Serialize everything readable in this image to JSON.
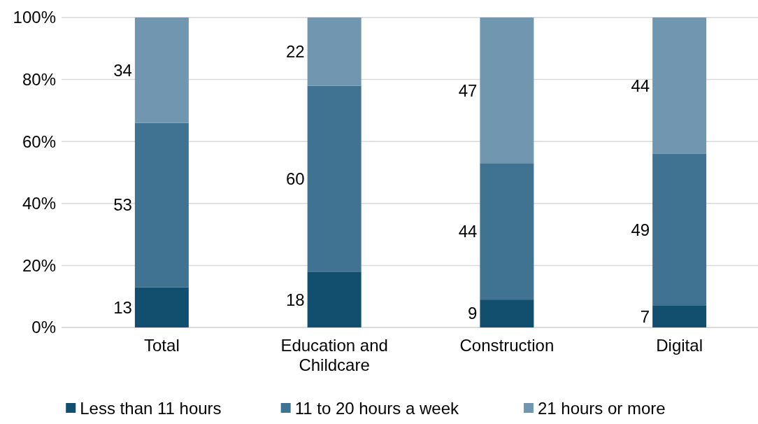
{
  "chart_data": {
    "type": "bar",
    "stacked": true,
    "categories": [
      "Total",
      "Education and Childcare",
      "Construction",
      "Digital"
    ],
    "series": [
      {
        "name": "Less than 11 hours",
        "color": "#124e6e",
        "values": [
          13,
          18,
          9,
          7
        ]
      },
      {
        "name": "11 to 20 hours a week",
        "color": "#3f7391",
        "values": [
          53,
          60,
          44,
          49
        ]
      },
      {
        "name": "21 hours or more",
        "color": "#7096b0",
        "values": [
          34,
          22,
          47,
          44
        ]
      }
    ],
    "ylim": [
      0,
      100
    ],
    "yticks": [
      {
        "value": 0,
        "label": "0%"
      },
      {
        "value": 20,
        "label": "20%"
      },
      {
        "value": 40,
        "label": "40%"
      },
      {
        "value": 60,
        "label": "60%"
      },
      {
        "value": 80,
        "label": "80%"
      },
      {
        "value": 100,
        "label": "100%"
      }
    ],
    "grid": "y",
    "legend": "bottom",
    "data_labels": true
  }
}
